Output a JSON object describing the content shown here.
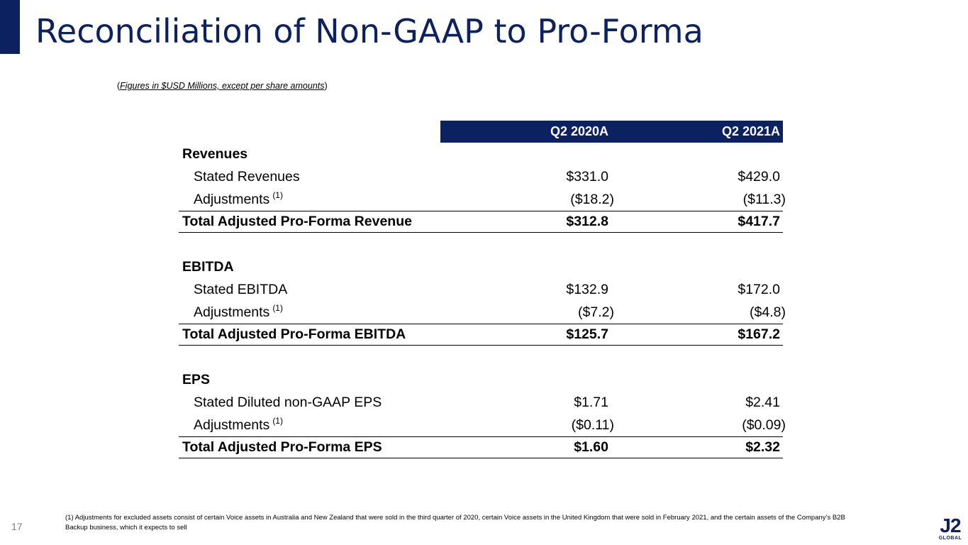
{
  "title": "Reconciliation of Non-GAAP to Pro-Forma",
  "subtitle": {
    "open": "(",
    "text": "Figures in $USD Millions, except per share amounts",
    "close": ")"
  },
  "table": {
    "columns": [
      "Q2 2020A",
      "Q2 2021A"
    ],
    "footnote_marker": "(1)",
    "revenues": {
      "heading": "Revenues",
      "stated_label": "Stated Revenues",
      "stated": [
        "$331.0",
        "$429.0"
      ],
      "adj_label": "Adjustments",
      "adj": [
        "($18.2)",
        "($11.3)"
      ],
      "total_label": "Total Adjusted Pro-Forma Revenue",
      "total": [
        "$312.8",
        "$417.7"
      ]
    },
    "ebitda": {
      "heading": "EBITDA",
      "stated_label": "Stated EBITDA",
      "stated": [
        "$132.9",
        "$172.0"
      ],
      "adj_label": "Adjustments",
      "adj": [
        "($7.2)",
        "($4.8)"
      ],
      "total_label": "Total Adjusted Pro-Forma EBITDA",
      "total": [
        "$125.7",
        "$167.2"
      ]
    },
    "eps": {
      "heading": "EPS",
      "stated_label": "Stated Diluted non-GAAP EPS",
      "stated": [
        "$1.71",
        "$2.41"
      ],
      "adj_label": "Adjustments",
      "adj": [
        "($0.11)",
        "($0.09)"
      ],
      "total_label": "Total Adjusted Pro-Forma EPS",
      "total": [
        "$1.60",
        "$2.32"
      ]
    }
  },
  "page_number": "17",
  "footnote": "(1) Adjustments for excluded assets consist of certain Voice assets in Australia and New Zealand that were sold in the third quarter of 2020, certain Voice assets in the United Kingdom that were sold in February 2021, and the certain assets of the Company’s B2B Backup business, which it expects to sell",
  "logo": {
    "mark": "J2",
    "word": "GLOBAL"
  },
  "colors": {
    "brand_navy": "#0b2160"
  }
}
